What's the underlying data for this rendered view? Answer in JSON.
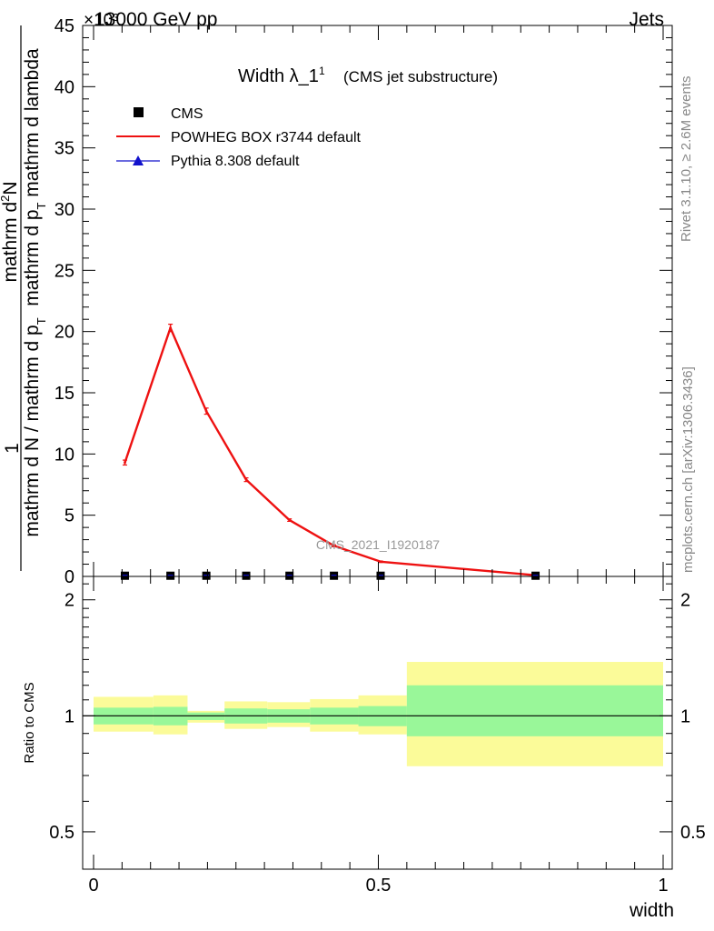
{
  "header": {
    "left": "13000 GeV pp",
    "right": "Jets",
    "multiplier": "×10³"
  },
  "side_labels": {
    "rivet": "Rivet 3.1.10, ≥ 2.6M events",
    "mcplots": "mcplots.cern.ch [arXiv:1306.3436]"
  },
  "chart_data": [
    {
      "type": "line",
      "title": "Width λ_1",
      "title_superscript": "1",
      "subtitle": "(CMS jet substructure)",
      "watermark": "CMS_2021_I1920187",
      "ylabel": {
        "num_line1": "1",
        "den_line1": "mathrm d N / mathrm d p",
        "den_sub1": "T",
        "num_line2": "mathrm d",
        "num_sup2": "2",
        "num_tail2": "N",
        "den_line2a": "mathrm d p",
        "den_sub2": "T",
        "den_line2b": " mathrm d lambda"
      },
      "ylabel_multiplier": "×10³",
      "xlim": [
        0,
        1
      ],
      "ylim": [
        0,
        45
      ],
      "y_scale_factor": 1000,
      "yticks": [
        0,
        5,
        10,
        15,
        20,
        25,
        30,
        35,
        40,
        45
      ],
      "ytick_labels": [
        "0",
        "5",
        "10",
        "15",
        "20",
        "25",
        "30",
        "35",
        "40",
        "45"
      ],
      "legend_placement": "top-left",
      "series": [
        {
          "name": "CMS",
          "marker": "square",
          "color": "#000000",
          "x": [
            0.055,
            0.135,
            0.198,
            0.268,
            0.344,
            0.422,
            0.504,
            0.776
          ],
          "values": [
            0.02,
            0.02,
            0.02,
            0.02,
            0.02,
            0.02,
            0.02,
            0.02
          ]
        },
        {
          "name": "POWHEG BOX r3744 default",
          "marker": "line",
          "color": "#ee1111",
          "x": [
            0.055,
            0.135,
            0.198,
            0.268,
            0.344,
            0.422,
            0.504,
            0.776
          ],
          "values": [
            9.3,
            20.3,
            13.5,
            7.9,
            4.6,
            2.5,
            1.2,
            0.1
          ],
          "errors": [
            0.2,
            0.3,
            0.25,
            0.15,
            0.1,
            0.08,
            0.06,
            0.03
          ]
        },
        {
          "name": "Pythia 8.308 default",
          "marker": "triangle",
          "color": "#1111cc",
          "x": [],
          "values": []
        }
      ]
    },
    {
      "type": "area",
      "ylabel": "Ratio to CMS",
      "xlabel": "width",
      "xlim": [
        0,
        1
      ],
      "ylim": [
        0.4,
        2.3
      ],
      "y_scale": "log",
      "yticks": [
        0.5,
        1,
        2
      ],
      "ytick_labels": [
        "0.5",
        "1",
        "2"
      ],
      "xticks": [
        0,
        0.5,
        1
      ],
      "xtick_labels": [
        "0",
        "0.5",
        "1"
      ],
      "reference_line": 1,
      "bin_edges": [
        0.0,
        0.105,
        0.165,
        0.23,
        0.305,
        0.38,
        0.465,
        0.55,
        1.0
      ],
      "band_1sigma": {
        "color": "#99f799",
        "low": [
          0.95,
          0.945,
          0.975,
          0.955,
          0.96,
          0.95,
          0.94,
          0.885
        ],
        "high": [
          1.05,
          1.055,
          1.02,
          1.045,
          1.04,
          1.05,
          1.06,
          1.2
        ]
      },
      "band_2sigma": {
        "color": "#fbfb99",
        "low": [
          0.91,
          0.895,
          0.96,
          0.925,
          0.935,
          0.91,
          0.895,
          0.74
        ],
        "high": [
          1.12,
          1.13,
          1.03,
          1.09,
          1.085,
          1.105,
          1.13,
          1.38
        ]
      }
    }
  ]
}
